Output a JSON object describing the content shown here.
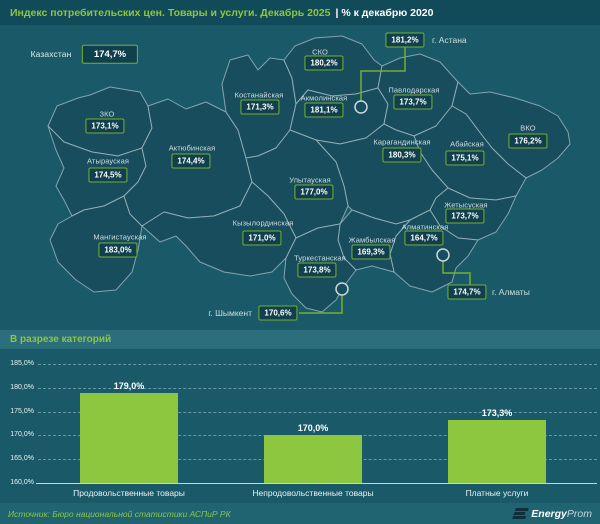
{
  "header": {
    "title_main": "Индекс потребительских цен. Товары и услуги. Декабрь 2025",
    "title_sub": "| % к декабрю 2020"
  },
  "map": {
    "national": {
      "name": "Казахстан",
      "value": "174,7%"
    },
    "regions": [
      {
        "name": "ЗКО",
        "value": "173,1%"
      },
      {
        "name": "Атырауская",
        "value": "174,5%"
      },
      {
        "name": "Мангистауская",
        "value": "183,0%"
      },
      {
        "name": "Актюбинская",
        "value": "174,4%"
      },
      {
        "name": "Костанайская",
        "value": "171,3%"
      },
      {
        "name": "СКО",
        "value": "180,2%"
      },
      {
        "name": "Акмолинская",
        "value": "181,1%"
      },
      {
        "name": "Павлодарская",
        "value": "173,7%"
      },
      {
        "name": "ВКО",
        "value": "176,2%"
      },
      {
        "name": "Карагандинская",
        "value": "180,3%"
      },
      {
        "name": "Абайская",
        "value": "175,1%"
      },
      {
        "name": "Улытауская",
        "value": "177,0%"
      },
      {
        "name": "Кызылординская",
        "value": "171,0%"
      },
      {
        "name": "Жетысуская",
        "value": "173,7%"
      },
      {
        "name": "Жамбылская",
        "value": "169,3%"
      },
      {
        "name": "Алматинская",
        "value": "164,7%"
      },
      {
        "name": "Туркестанская",
        "value": "173,8%"
      }
    ],
    "cities": [
      {
        "name": "г. Астана",
        "value": "181,2%"
      },
      {
        "name": "г. Алматы",
        "value": "174,7%"
      },
      {
        "name": "г. Шымкент",
        "value": "170,6%"
      }
    ]
  },
  "chart_data": [
    {
      "type": "choropleth-map",
      "title": "Индекс потребительских цен. Товары и услуги. Декабрь 2025 | % к декабрю 2020",
      "unit": "%",
      "national": {
        "name": "Казахстан",
        "value": 174.7
      },
      "regions": [
        {
          "name": "ЗКО",
          "value": 173.1
        },
        {
          "name": "Атырауская",
          "value": 174.5
        },
        {
          "name": "Мангистауская",
          "value": 183.0
        },
        {
          "name": "Актюбинская",
          "value": 174.4
        },
        {
          "name": "Костанайская",
          "value": 171.3
        },
        {
          "name": "СКО",
          "value": 180.2
        },
        {
          "name": "Акмолинская",
          "value": 181.1
        },
        {
          "name": "Павлодарская",
          "value": 173.7
        },
        {
          "name": "ВКО",
          "value": 176.2
        },
        {
          "name": "Карагандинская",
          "value": 180.3
        },
        {
          "name": "Абайская",
          "value": 175.1
        },
        {
          "name": "Улытауская",
          "value": 177.0
        },
        {
          "name": "Кызылординская",
          "value": 171.0
        },
        {
          "name": "Жетысуская",
          "value": 173.7
        },
        {
          "name": "Жамбылская",
          "value": 169.3
        },
        {
          "name": "Алматинская",
          "value": 164.7
        },
        {
          "name": "Туркестанская",
          "value": 173.8
        },
        {
          "name": "г. Астана",
          "value": 181.2
        },
        {
          "name": "г. Алматы",
          "value": 174.7
        },
        {
          "name": "г. Шымкент",
          "value": 170.6
        }
      ]
    },
    {
      "type": "bar",
      "title": "В разрезе категорий",
      "categories": [
        "Продовольственные товары",
        "Непродовольственные товары",
        "Платные услуги"
      ],
      "values": [
        179.0,
        170.0,
        173.3
      ],
      "value_labels": [
        "179,0%",
        "170,0%",
        "173,3%"
      ],
      "y_ticks": [
        160,
        165,
        170,
        175,
        180,
        185
      ],
      "y_tick_labels": [
        "160,0%",
        "165,0%",
        "170,0%",
        "175,0%",
        "180,0%",
        "185,0%"
      ],
      "ylim": [
        160,
        185
      ],
      "xlabel": "",
      "ylabel": "",
      "grid": "horizontal-dashed",
      "legend": "none",
      "bar_color": "#8dc63f"
    }
  ],
  "footer": {
    "source": "Источник: Бюро национальной статистики АСПиР РК",
    "logo_bold": "Energy",
    "logo_light": "Prom"
  },
  "colors": {
    "accent_green": "#8dc63f",
    "box_border_green": "#74b031",
    "background_teal": "#1a5a68",
    "region_fill": "#174d5c",
    "header_bar": "#114b59",
    "section_bar": "#2c6e7c",
    "footer_bar": "#206472",
    "value_box_bg": "#10404d",
    "map_border": "#a7bfc7"
  }
}
